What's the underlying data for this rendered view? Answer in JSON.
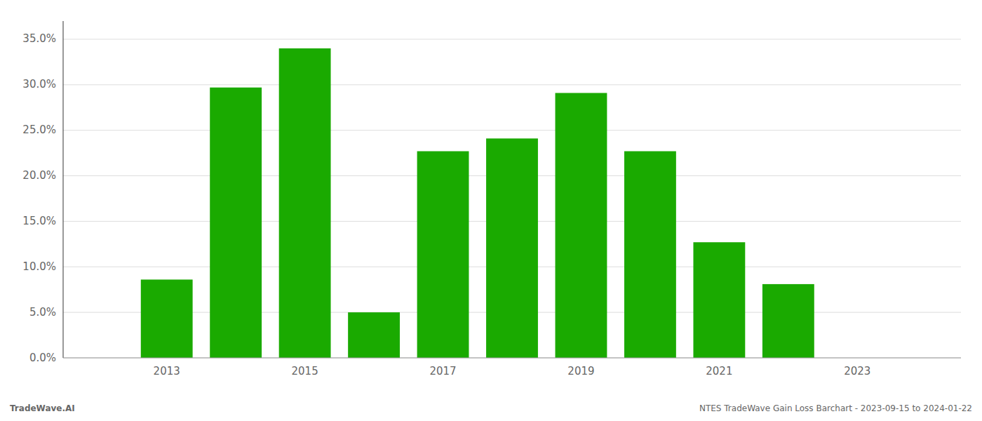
{
  "chart_data": {
    "type": "bar",
    "x": [
      2013,
      2014,
      2015,
      2016,
      2017,
      2018,
      2019,
      2020,
      2021,
      2022,
      2023
    ],
    "values": [
      0.086,
      0.297,
      0.34,
      0.05,
      0.227,
      0.241,
      0.291,
      0.227,
      0.127,
      0.081,
      0.0
    ],
    "color": "#1aaa00",
    "xlim": [
      2011.5,
      2024.5
    ],
    "xticks": [
      2013,
      2015,
      2017,
      2019,
      2021,
      2023
    ],
    "ylim": [
      0,
      0.37
    ],
    "yticks": [
      {
        "value": 0.0,
        "label": "0.0%"
      },
      {
        "value": 0.05,
        "label": "5.0%"
      },
      {
        "value": 0.1,
        "label": "10.0%"
      },
      {
        "value": 0.15,
        "label": "15.0%"
      },
      {
        "value": 0.2,
        "label": "20.0%"
      },
      {
        "value": 0.25,
        "label": "25.0%"
      },
      {
        "value": 0.3,
        "label": "30.0%"
      },
      {
        "value": 0.35,
        "label": "35.0%"
      }
    ],
    "grid": true,
    "annotations": [
      "TradeWave.AI",
      "NTES TradeWave Gain Loss Barchart - 2023-09-15 to 2024-01-22"
    ]
  }
}
